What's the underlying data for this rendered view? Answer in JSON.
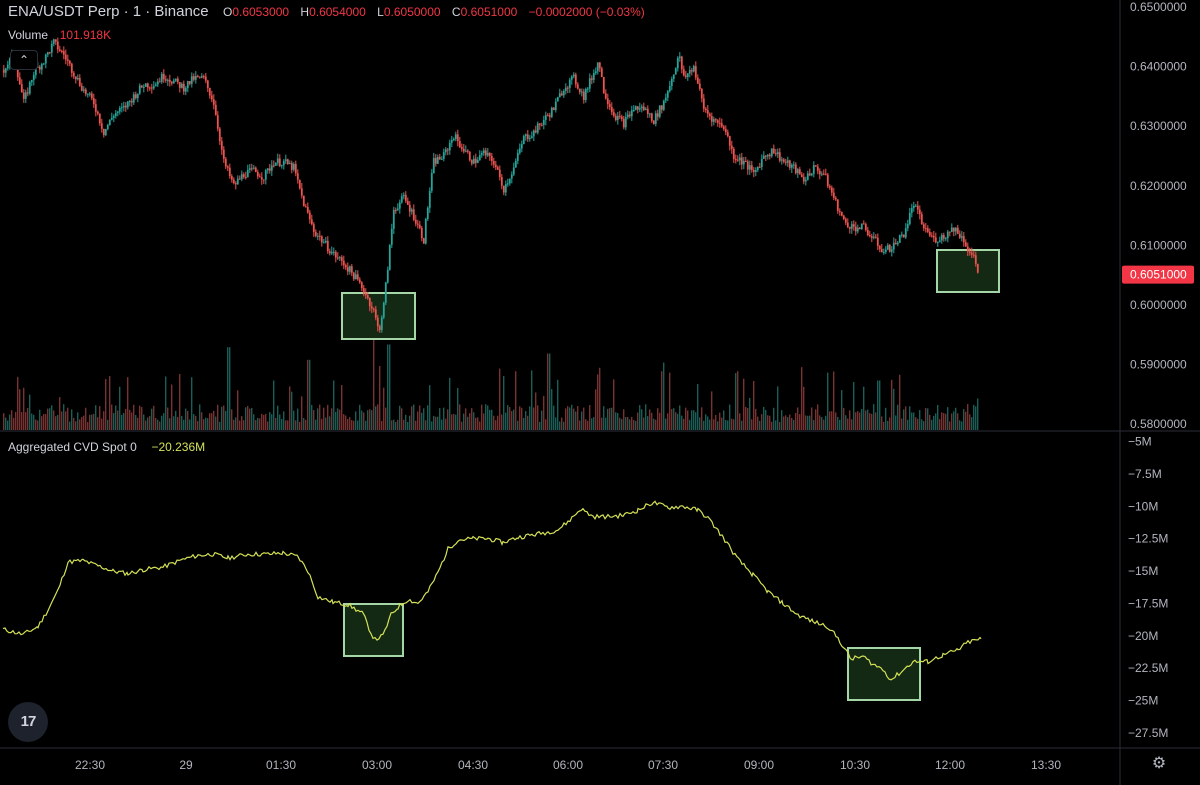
{
  "header": {
    "symbol": "ENA/USDT Perp · 1 · Binance",
    "o_label": "O",
    "o_value": "0.6053000",
    "h_label": "H",
    "h_value": "0.6054000",
    "l_label": "L",
    "l_value": "0.6050000",
    "c_label": "C",
    "c_value": "0.6051000",
    "change": "−0.0002000 (−0.03%)"
  },
  "volume_legend": {
    "label": "Volume",
    "value": "101.918K"
  },
  "cvd_legend": {
    "label": "Aggregated CVD Spot 0",
    "value": "−20.236M"
  },
  "icons": {
    "collapse": "chevron-up-icon",
    "logo": "tradingview-logo-icon",
    "settings": "gear-icon"
  },
  "logo_text": "17",
  "colors": {
    "up": "#26a69a",
    "down": "#ef5350",
    "cvd_line": "#d4e157",
    "box_stroke": "#a5d6a7",
    "box_fill": "#1b3a1b",
    "price_badge": "#f23645"
  },
  "chart_data": [
    {
      "type": "candlestick",
      "title": "ENA/USDT Perp · 1 · Binance",
      "y_axis_ticks": [
        "0.6500000",
        "0.6400000",
        "0.6300000",
        "0.6200000",
        "0.6100000",
        "0.6000000",
        "0.5900000",
        "0.5800000"
      ],
      "ylim": [
        0.58,
        0.65
      ],
      "last_price": "0.6051000",
      "x_tick_labels": [
        "22:30",
        "29",
        "01:30",
        "03:00",
        "04:30",
        "06:00",
        "07:30",
        "09:00",
        "10:30",
        "12:00",
        "13:30"
      ],
      "close_path": [
        [
          0,
          0.6395
        ],
        [
          10,
          0.642
        ],
        [
          20,
          0.634
        ],
        [
          30,
          0.639
        ],
        [
          40,
          0.641
        ],
        [
          50,
          0.644
        ],
        [
          60,
          0.642
        ],
        [
          70,
          0.639
        ],
        [
          80,
          0.636
        ],
        [
          90,
          0.634
        ],
        [
          100,
          0.629
        ],
        [
          110,
          0.632
        ],
        [
          120,
          0.633
        ],
        [
          130,
          0.635
        ],
        [
          140,
          0.637
        ],
        [
          150,
          0.637
        ],
        [
          160,
          0.6385
        ],
        [
          170,
          0.6375
        ],
        [
          180,
          0.6365
        ],
        [
          190,
          0.638
        ],
        [
          200,
          0.638
        ],
        [
          210,
          0.634
        ],
        [
          220,
          0.624
        ],
        [
          230,
          0.62
        ],
        [
          240,
          0.622
        ],
        [
          250,
          0.6225
        ],
        [
          260,
          0.6215
        ],
        [
          270,
          0.624
        ],
        [
          280,
          0.624
        ],
        [
          290,
          0.623
        ],
        [
          300,
          0.617
        ],
        [
          310,
          0.6125
        ],
        [
          320,
          0.6105
        ],
        [
          330,
          0.6085
        ],
        [
          340,
          0.607
        ],
        [
          350,
          0.605
        ],
        [
          360,
          0.6025
        ],
        [
          370,
          0.599
        ],
        [
          375,
          0.5955
        ],
        [
          380,
          0.6
        ],
        [
          385,
          0.608
        ],
        [
          390,
          0.616
        ],
        [
          400,
          0.618
        ],
        [
          410,
          0.615
        ],
        [
          420,
          0.611
        ],
        [
          425,
          0.618
        ],
        [
          430,
          0.624
        ],
        [
          440,
          0.625
        ],
        [
          450,
          0.6285
        ],
        [
          460,
          0.626
        ],
        [
          470,
          0.624
        ],
        [
          480,
          0.6255
        ],
        [
          490,
          0.624
        ],
        [
          500,
          0.6195
        ],
        [
          510,
          0.623
        ],
        [
          520,
          0.628
        ],
        [
          530,
          0.629
        ],
        [
          540,
          0.631
        ],
        [
          550,
          0.633
        ],
        [
          560,
          0.6365
        ],
        [
          570,
          0.638
        ],
        [
          580,
          0.635
        ],
        [
          590,
          0.639
        ],
        [
          595,
          0.641
        ],
        [
          600,
          0.636
        ],
        [
          610,
          0.632
        ],
        [
          620,
          0.6305
        ],
        [
          630,
          0.633
        ],
        [
          640,
          0.633
        ],
        [
          650,
          0.631
        ],
        [
          660,
          0.634
        ],
        [
          670,
          0.639
        ],
        [
          675,
          0.642
        ],
        [
          680,
          0.638
        ],
        [
          690,
          0.64
        ],
        [
          700,
          0.633
        ],
        [
          710,
          0.631
        ],
        [
          720,
          0.63
        ],
        [
          730,
          0.625
        ],
        [
          740,
          0.624
        ],
        [
          750,
          0.622
        ],
        [
          760,
          0.625
        ],
        [
          770,
          0.626
        ],
        [
          780,
          0.624
        ],
        [
          790,
          0.623
        ],
        [
          800,
          0.621
        ],
        [
          810,
          0.623
        ],
        [
          820,
          0.622
        ],
        [
          830,
          0.618
        ],
        [
          840,
          0.614
        ],
        [
          850,
          0.613
        ],
        [
          860,
          0.613
        ],
        [
          870,
          0.611
        ],
        [
          880,
          0.609
        ],
        [
          890,
          0.61
        ],
        [
          900,
          0.612
        ],
        [
          910,
          0.617
        ],
        [
          920,
          0.613
        ],
        [
          930,
          0.611
        ],
        [
          940,
          0.6115
        ],
        [
          950,
          0.613
        ],
        [
          960,
          0.611
        ],
        [
          965,
          0.609
        ],
        [
          970,
          0.608
        ],
        [
          975,
          0.6051
        ]
      ]
    },
    {
      "type": "bar",
      "title": "Volume",
      "value": "101.918K",
      "spikes": [
        [
          225,
          0.92
        ],
        [
          305,
          0.78
        ],
        [
          330,
          0.55
        ],
        [
          370,
          1.0
        ],
        [
          385,
          0.95
        ],
        [
          500,
          0.6
        ],
        [
          545,
          0.85
        ],
        [
          660,
          0.75
        ],
        [
          830,
          0.65
        ],
        [
          875,
          0.55
        ],
        [
          975,
          0.35
        ]
      ]
    },
    {
      "type": "line",
      "title": "Aggregated CVD Spot 0",
      "value": "−20.236M",
      "y_axis_ticks": [
        "−5M",
        "−7.5M",
        "−10M",
        "−12.5M",
        "−15M",
        "−17.5M",
        "−20M",
        "−22.5M",
        "−25M",
        "−27.5M"
      ],
      "ylim": [
        -28.9,
        -4.2
      ],
      "series": [
        [
          0,
          -19.5
        ],
        [
          20,
          -19.9
        ],
        [
          35,
          -19.3
        ],
        [
          45,
          -18.0
        ],
        [
          55,
          -16.5
        ],
        [
          65,
          -14.3
        ],
        [
          80,
          -14.2
        ],
        [
          95,
          -14.6
        ],
        [
          110,
          -15.0
        ],
        [
          125,
          -15.2
        ],
        [
          140,
          -14.9
        ],
        [
          160,
          -14.7
        ],
        [
          180,
          -14.1
        ],
        [
          195,
          -13.8
        ],
        [
          210,
          -13.7
        ],
        [
          225,
          -14.0
        ],
        [
          245,
          -13.7
        ],
        [
          265,
          -13.7
        ],
        [
          280,
          -13.6
        ],
        [
          295,
          -13.9
        ],
        [
          305,
          -15.0
        ],
        [
          315,
          -17.0
        ],
        [
          330,
          -17.4
        ],
        [
          345,
          -17.6
        ],
        [
          360,
          -18.3
        ],
        [
          368,
          -19.8
        ],
        [
          372,
          -20.3
        ],
        [
          380,
          -20.0
        ],
        [
          388,
          -18.4
        ],
        [
          395,
          -17.8
        ],
        [
          405,
          -17.2
        ],
        [
          415,
          -17.5
        ],
        [
          425,
          -16.6
        ],
        [
          435,
          -15.1
        ],
        [
          445,
          -13.3
        ],
        [
          455,
          -12.6
        ],
        [
          470,
          -12.5
        ],
        [
          485,
          -12.5
        ],
        [
          500,
          -12.8
        ],
        [
          515,
          -12.4
        ],
        [
          530,
          -12.2
        ],
        [
          545,
          -12.0
        ],
        [
          555,
          -11.8
        ],
        [
          565,
          -11.2
        ],
        [
          578,
          -10.2
        ],
        [
          590,
          -10.8
        ],
        [
          605,
          -10.8
        ],
        [
          620,
          -10.7
        ],
        [
          635,
          -10.3
        ],
        [
          650,
          -9.7
        ],
        [
          665,
          -10.1
        ],
        [
          680,
          -10.0
        ],
        [
          695,
          -10.3
        ],
        [
          705,
          -10.9
        ],
        [
          720,
          -12.4
        ],
        [
          735,
          -14.1
        ],
        [
          750,
          -15.3
        ],
        [
          765,
          -16.6
        ],
        [
          780,
          -17.5
        ],
        [
          795,
          -18.4
        ],
        [
          810,
          -18.9
        ],
        [
          825,
          -19.3
        ],
        [
          835,
          -20.2
        ],
        [
          848,
          -21.8
        ],
        [
          860,
          -21.6
        ],
        [
          870,
          -22.2
        ],
        [
          880,
          -22.6
        ],
        [
          888,
          -23.4
        ],
        [
          898,
          -22.8
        ],
        [
          910,
          -22.0
        ],
        [
          925,
          -22.0
        ],
        [
          940,
          -21.5
        ],
        [
          955,
          -21.1
        ],
        [
          965,
          -20.5
        ],
        [
          978,
          -20.236
        ]
      ]
    }
  ]
}
